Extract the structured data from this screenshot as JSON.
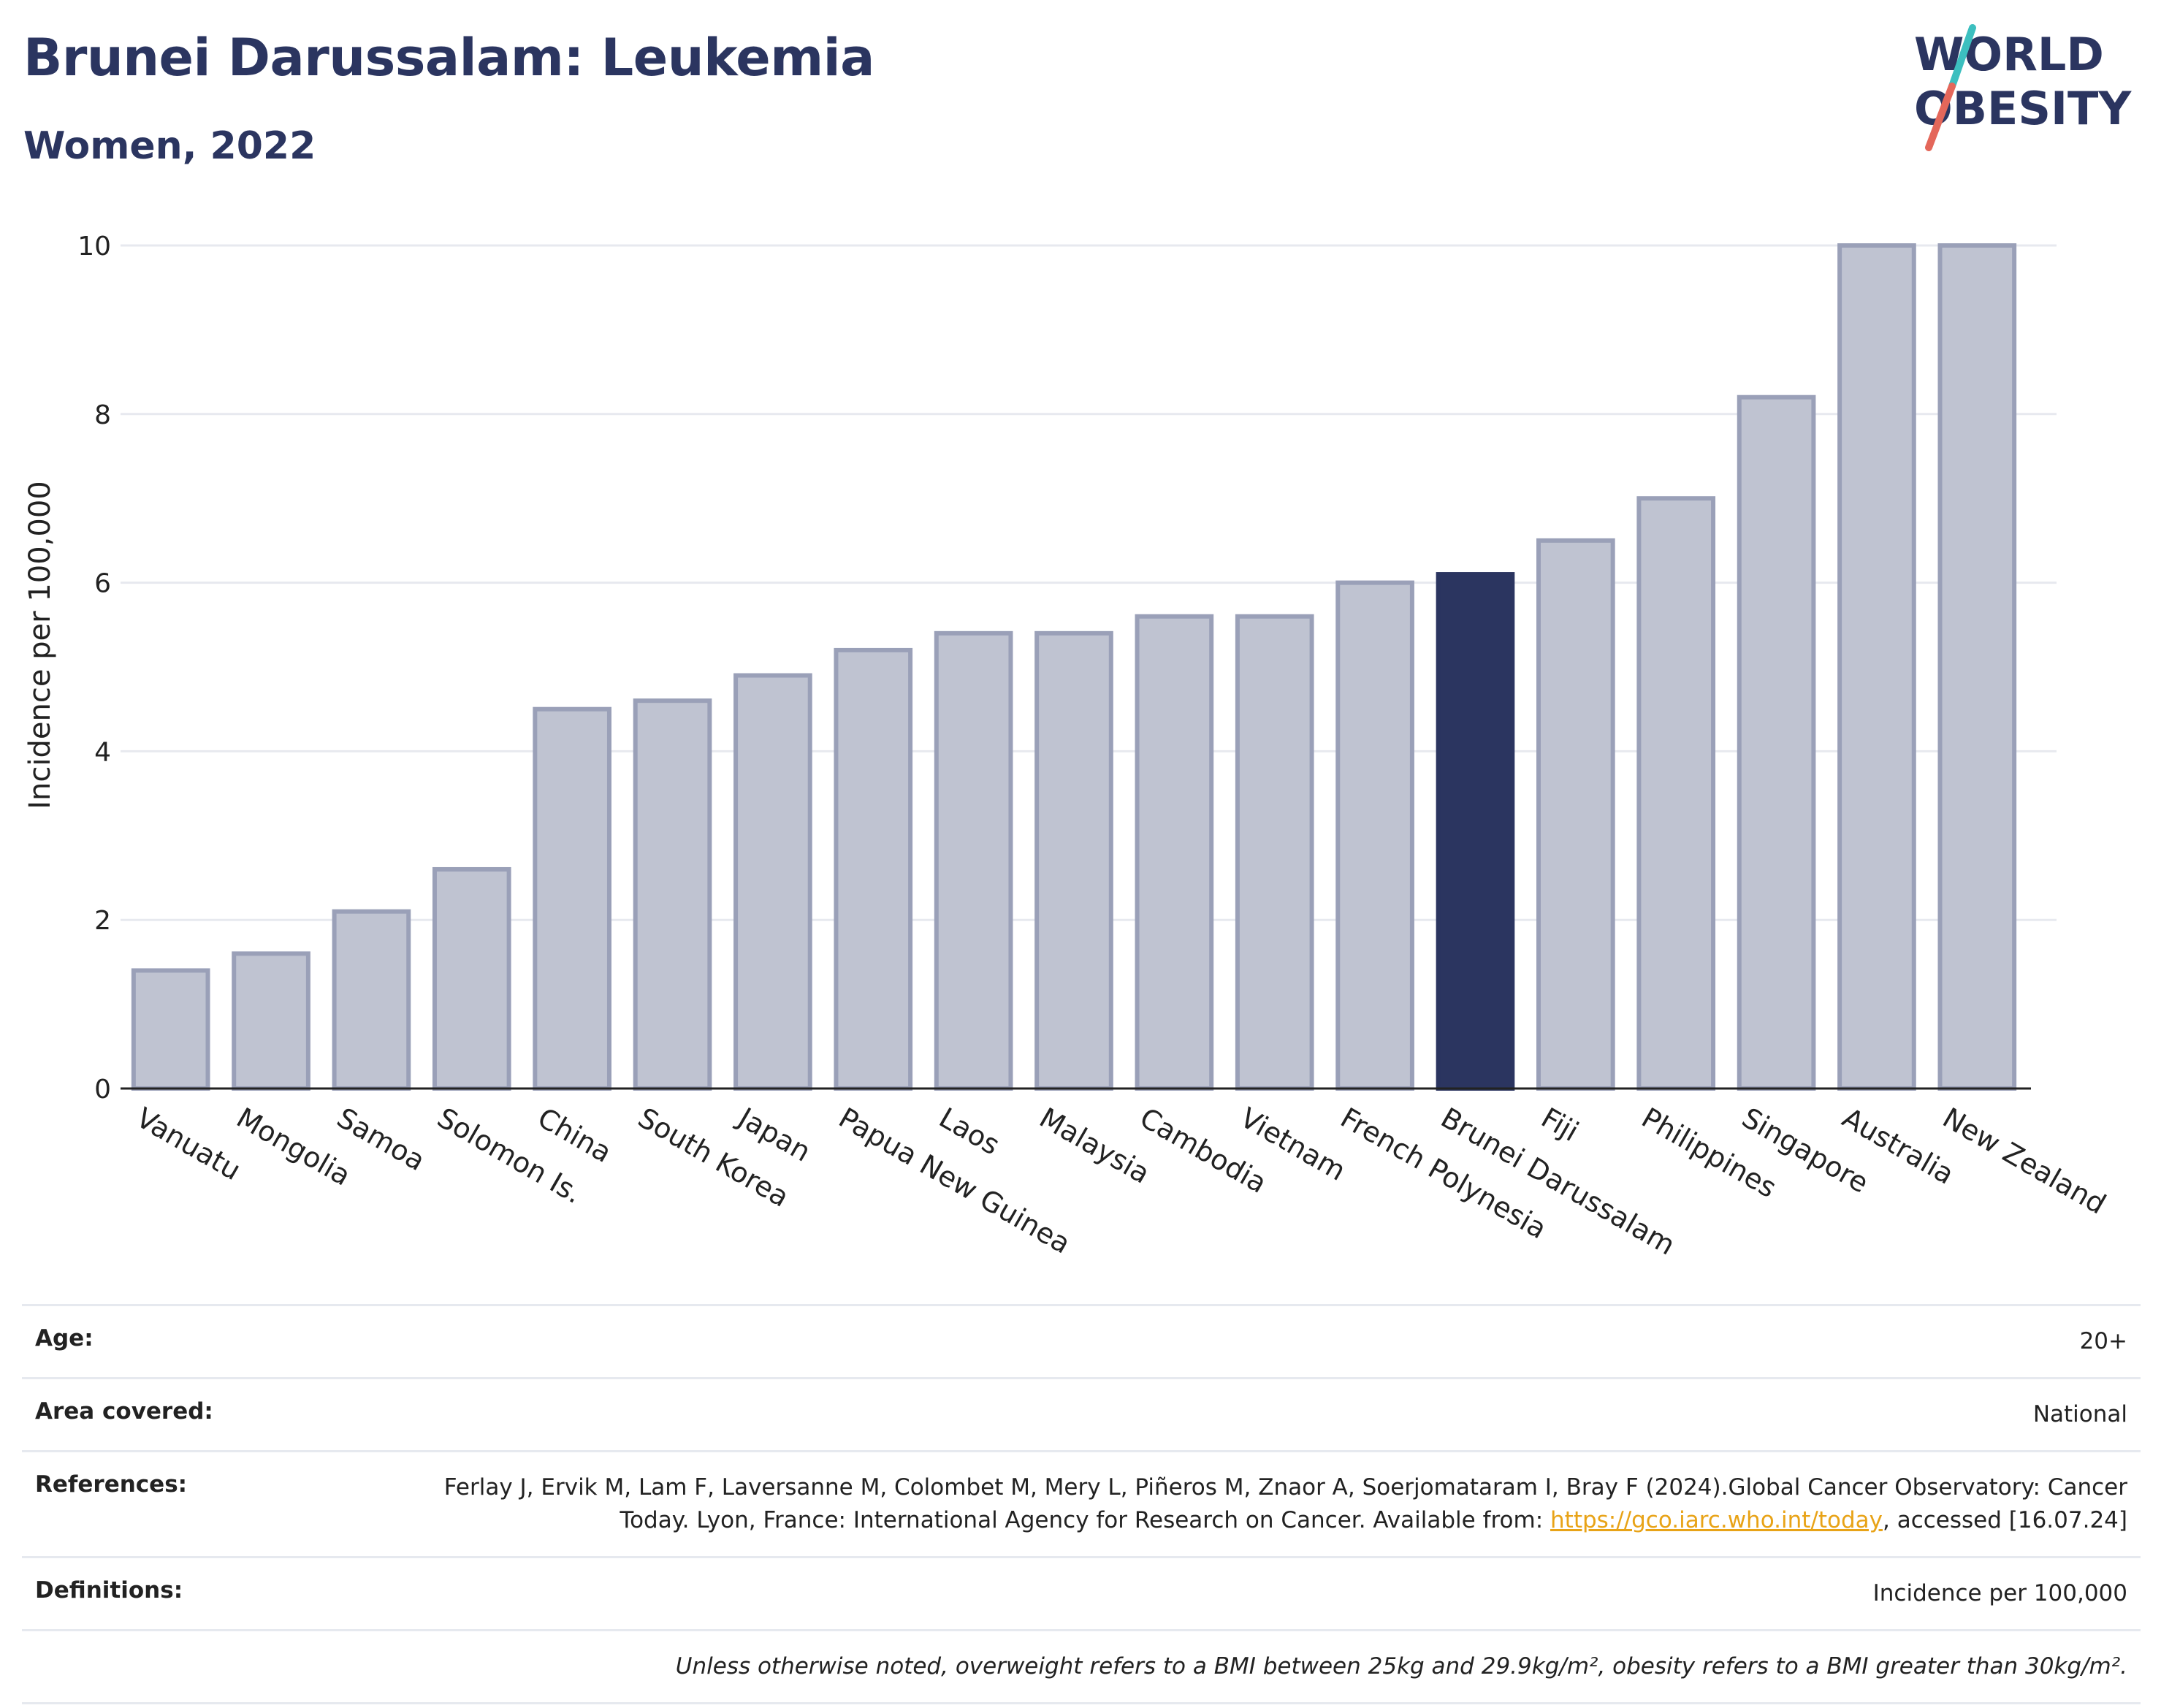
{
  "header": {
    "title": "Brunei Darussalam: Leukemia",
    "subtitle": "Women, 2022"
  },
  "logo": {
    "line1": "WORLD",
    "line2": "OBESITY",
    "colors": {
      "text": "#2b3560",
      "slash_teal": "#3cbfbf",
      "slash_coral": "#e4675a"
    }
  },
  "chart_data": {
    "type": "bar",
    "title": "Brunei Darussalam: Leukemia",
    "subtitle": "Women, 2022",
    "ylabel": "Incidence per 100,000",
    "ylim": [
      0,
      10
    ],
    "yticks": [
      "0",
      "2",
      "4",
      "6",
      "8",
      "10"
    ],
    "grid": true,
    "highlight": "Brunei Darussalam",
    "colors": {
      "bar": "#bfc3d1",
      "bar_border": "#9aa0b8",
      "highlight": "#2b3560"
    },
    "categories": [
      "Vanuatu",
      "Mongolia",
      "Samoa",
      "Solomon Is.",
      "China",
      "South Korea",
      "Japan",
      "Papua New Guinea",
      "Laos",
      "Malaysia",
      "Cambodia",
      "Vietnam",
      "French Polynesia",
      "Brunei Darussalam",
      "Fiji",
      "Philippines",
      "Singapore",
      "Australia",
      "New Zealand"
    ],
    "values": [
      1.4,
      1.6,
      2.1,
      2.6,
      4.5,
      4.6,
      4.9,
      5.2,
      5.4,
      5.4,
      5.6,
      5.6,
      6.0,
      6.1,
      6.5,
      7.0,
      8.2,
      10.0,
      10.0
    ]
  },
  "info": {
    "age_label": "Age:",
    "age_value": "20+",
    "area_label": "Area covered:",
    "area_value": "National",
    "references_label": "References:",
    "references_text_1": "Ferlay J, Ervik M, Lam F, Laversanne M, Colombet M, Mery L, Piñeros M, Znaor A, Soerjomataram I, Bray F (2024).Global Cancer Observatory: Cancer Today. Lyon, France: International Agency for Research on Cancer. Available from: ",
    "references_link": "https://gco.iarc.who.int/today",
    "references_text_2": ", accessed [16.07.24]",
    "definitions_label": "Definitions:",
    "definitions_value": "Incidence per 100,000",
    "note": "Unless otherwise noted, overweight refers to a BMI between 25kg and 29.9kg/m², obesity refers to a BMI greater than 30kg/m²."
  }
}
